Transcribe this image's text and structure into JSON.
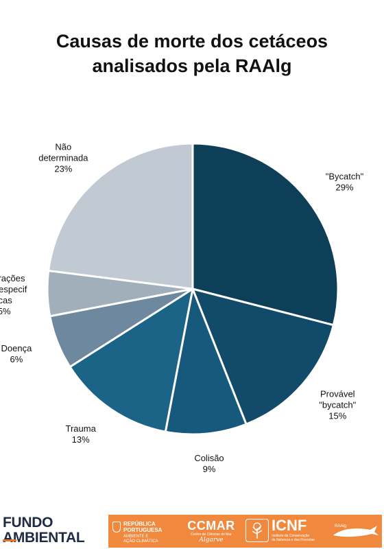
{
  "title": {
    "line1": "Causas de morte dos cetáceos",
    "line2": "analisados pela RAAlg"
  },
  "chart_data": {
    "type": "pie",
    "title": "Causas de morte dos cetáceos analisados pela RAAlg",
    "start": "12 o'clock",
    "direction": "clockwise",
    "slices": [
      {
        "label": "\"Bycatch\"",
        "label_lines": [
          "\"Bycatch\""
        ],
        "value": 29,
        "value_label": "29%",
        "color": "#0d3f58"
      },
      {
        "label": "Provável \"bycatch\"",
        "label_lines": [
          "Provável",
          "\"bycatch\""
        ],
        "value": 15,
        "value_label": "15%",
        "color": "#124b69"
      },
      {
        "label": "Colisão",
        "label_lines": [
          "Colisão"
        ],
        "value": 9,
        "value_label": "9%",
        "color": "#16597d"
      },
      {
        "label": "Trauma",
        "label_lines": [
          "Trauma"
        ],
        "value": 13,
        "value_label": "13%",
        "color": "#1b6488"
      },
      {
        "label": "Doença",
        "label_lines": [
          "Doença"
        ],
        "value": 6,
        "value_label": "6%",
        "color": "#6e889f"
      },
      {
        "label": "Interações interespecificas",
        "label_lines": [
          "Interações",
          "interespecif",
          "icas"
        ],
        "value": 5,
        "value_label": "5%",
        "color": "#a1afbb"
      },
      {
        "label": "Não determinada",
        "label_lines": [
          "Não",
          "determinada"
        ],
        "value": 23,
        "value_label": "23%",
        "color": "#c1cad3"
      }
    ]
  },
  "footer": {
    "fundo_line1": "FUNDO",
    "fundo_line2": "AMBIENTAL",
    "republica_line1": "REPÚBLICA",
    "republica_line2": "PORTUGUESA",
    "republica_sub1": "AMBIENTE E",
    "republica_sub2": "AÇÃO CLIMÁTICA",
    "ccmar_name": "CCMAR",
    "ccmar_sub": "Centro de Ciências do Mar",
    "ccmar_region": "Algarve",
    "icnf_name": "ICNF",
    "icnf_sub1": "Instituto da Conservação",
    "icnf_sub2": "da Natureza e das Florestas",
    "raalg_tag": "RAAlg",
    "band_color": "#f0893e",
    "fundo_color": "#1f2a44"
  }
}
